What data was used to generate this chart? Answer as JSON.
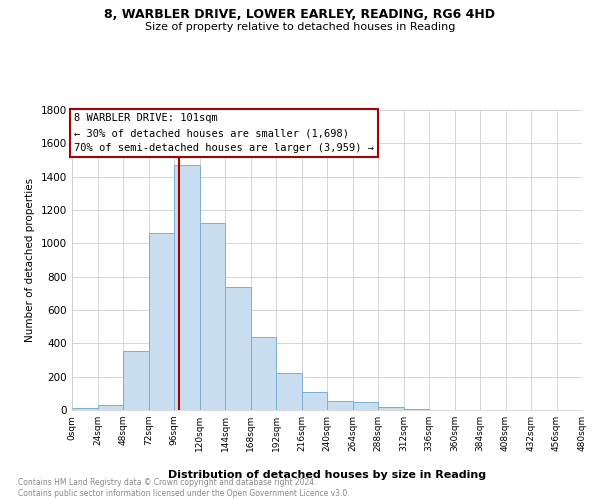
{
  "title1": "8, WARBLER DRIVE, LOWER EARLEY, READING, RG6 4HD",
  "title2": "Size of property relative to detached houses in Reading",
  "xlabel": "Distribution of detached houses by size in Reading",
  "ylabel": "Number of detached properties",
  "bin_edges": [
    0,
    24,
    48,
    72,
    96,
    120,
    144,
    168,
    192,
    216,
    240,
    264,
    288,
    312,
    336,
    360,
    384,
    408,
    432,
    456,
    480
  ],
  "bar_heights": [
    15,
    30,
    355,
    1060,
    1470,
    1120,
    740,
    440,
    225,
    110,
    55,
    50,
    20,
    5,
    2,
    1,
    0,
    0,
    0,
    0
  ],
  "bar_color": "#c8ddf0",
  "bar_edge_color": "#7bafd4",
  "highlight_color": "#aa0000",
  "property_size": 101,
  "annotation_title": "8 WARBLER DRIVE: 101sqm",
  "annotation_line1": "← 30% of detached houses are smaller (1,698)",
  "annotation_line2": "70% of semi-detached houses are larger (3,959) →",
  "ylim": [
    0,
    1800
  ],
  "yticks": [
    0,
    200,
    400,
    600,
    800,
    1000,
    1200,
    1400,
    1600,
    1800
  ],
  "xtick_labels": [
    "0sqm",
    "24sqm",
    "48sqm",
    "72sqm",
    "96sqm",
    "120sqm",
    "144sqm",
    "168sqm",
    "192sqm",
    "216sqm",
    "240sqm",
    "264sqm",
    "288sqm",
    "312sqm",
    "336sqm",
    "360sqm",
    "384sqm",
    "408sqm",
    "432sqm",
    "456sqm",
    "480sqm"
  ],
  "footer1": "Contains HM Land Registry data © Crown copyright and database right 2024.",
  "footer2": "Contains public sector information licensed under the Open Government Licence v3.0.",
  "background_color": "#ffffff",
  "grid_color": "#d0d0d0"
}
